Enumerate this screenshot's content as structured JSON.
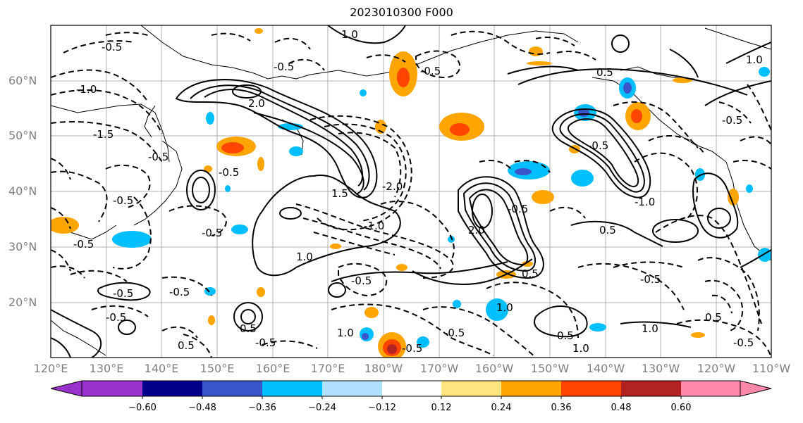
{
  "title": "2023010300 F000",
  "latitude_labels": [
    "60°N",
    "50°N",
    "40°N",
    "30°N",
    "20°N"
  ],
  "longitude_labels": [
    "120°E",
    "130°E",
    "140°E",
    "150°E",
    "160°E",
    "170°E",
    "180°W",
    "170°W",
    "160°W",
    "150°W",
    "140°W",
    "130°W",
    "120°W",
    "110°W"
  ],
  "contour_labels": [
    "-0.5",
    "-1.0",
    "1.0",
    "-1.5",
    "2.0",
    "-2.0",
    "0.5",
    "1.5"
  ],
  "colorbar": {
    "ticks": [
      "−0.60",
      "−0.48",
      "−0.36",
      "−0.24",
      "−0.12",
      "0.12",
      "0.24",
      "0.36",
      "0.48",
      "0.60"
    ],
    "colors": [
      "#9932cc",
      "#00008b",
      "#3a55c9",
      "#00bfff",
      "#b0e2ff",
      "#ffffff",
      "#ffe680",
      "#ffa500",
      "#ff4500",
      "#b22222",
      "#ff88aa"
    ]
  }
}
